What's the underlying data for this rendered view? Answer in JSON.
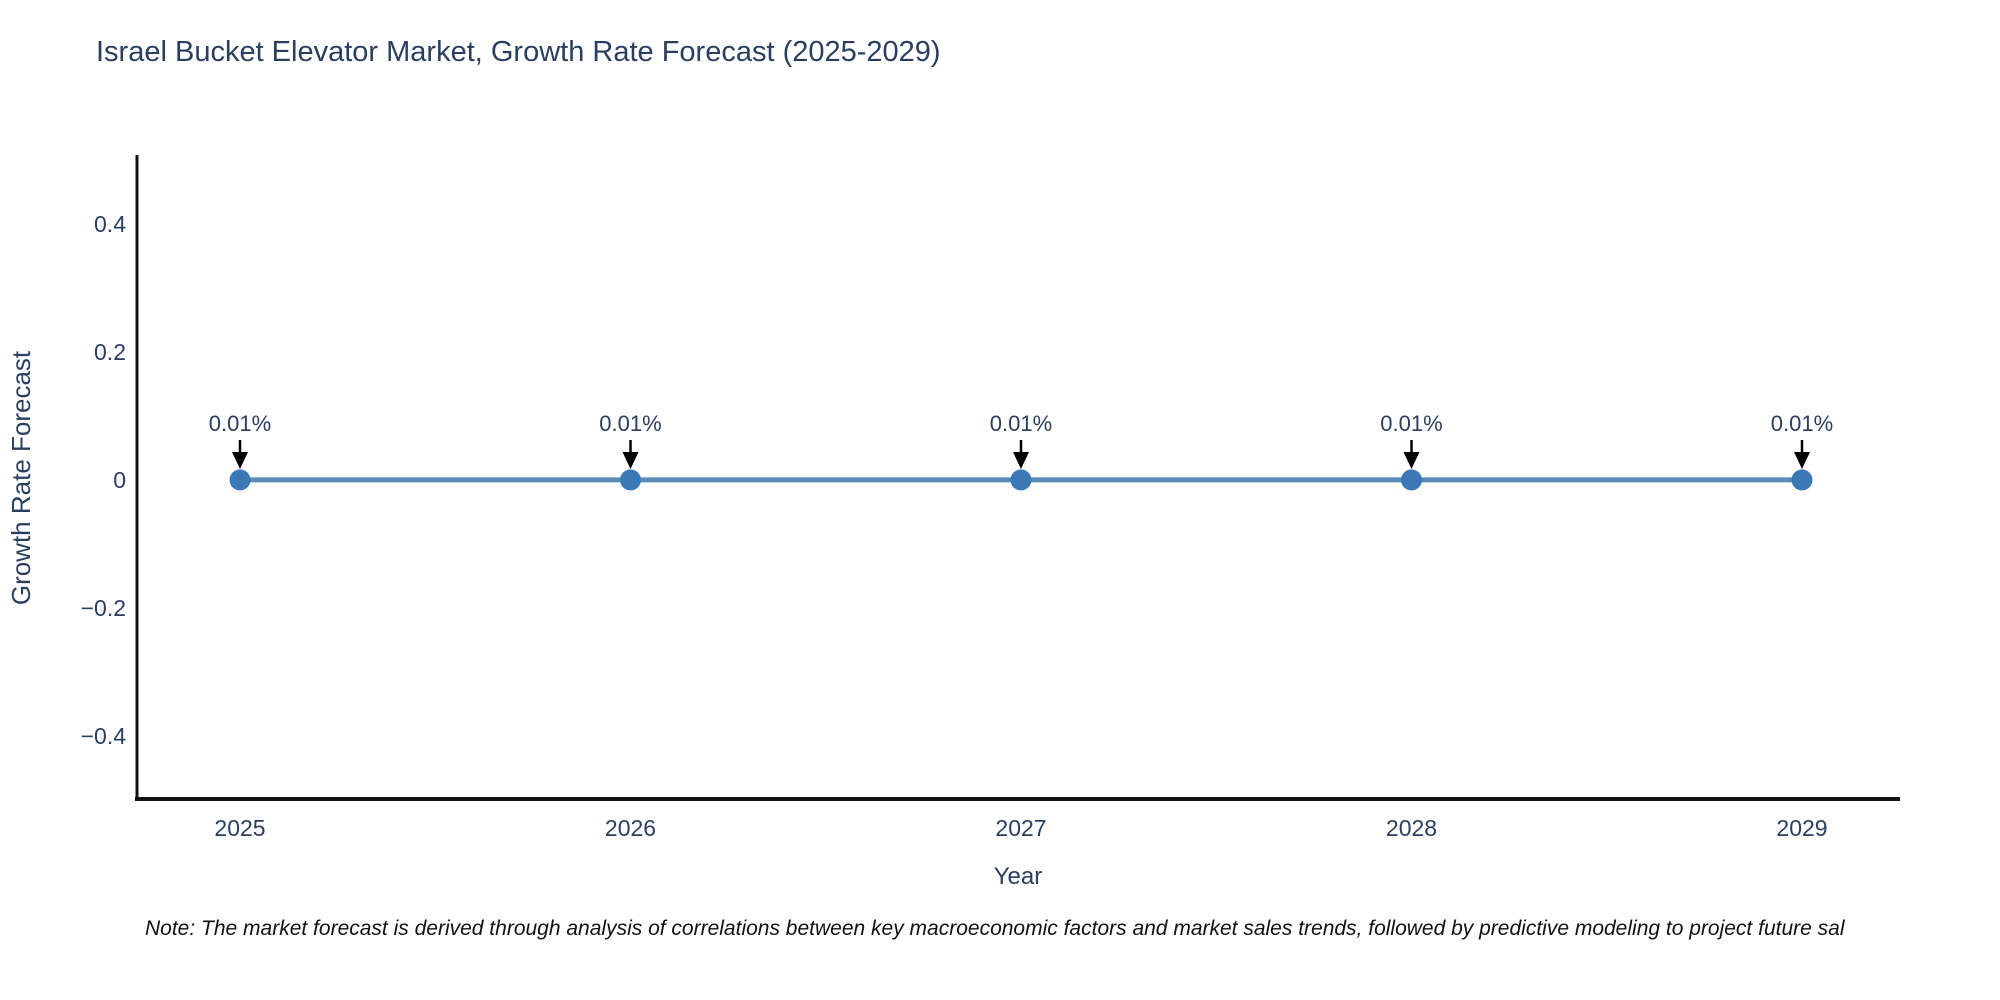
{
  "title": "Israel Bucket Elevator Market, Growth Rate Forecast (2025-2029)",
  "note": "Note: The market forecast is derived through analysis of correlations between key macroeconomic factors and market sales trends, followed by predictive modeling to project future sal",
  "chart_data": {
    "type": "line",
    "title": "Israel Bucket Elevator Market, Growth Rate Forecast (2025-2029)",
    "xlabel": "Year",
    "ylabel": "Growth Rate Forecast",
    "x": [
      "2025",
      "2026",
      "2027",
      "2028",
      "2029"
    ],
    "series": [
      {
        "name": "Growth Rate Forecast",
        "values": [
          0.0001,
          0.0001,
          0.0001,
          0.0001,
          0.0001
        ],
        "labels": [
          "0.01%",
          "0.01%",
          "0.01%",
          "0.01%",
          "0.01%"
        ]
      }
    ],
    "yticks": [
      {
        "value": 0.4,
        "label": "0.4"
      },
      {
        "value": 0.2,
        "label": "0.2"
      },
      {
        "value": 0,
        "label": "0"
      },
      {
        "value": -0.2,
        "label": "−0.2"
      },
      {
        "value": -0.4,
        "label": "−0.4"
      }
    ],
    "ylim": [
      -0.5,
      0.51
    ],
    "grid": false,
    "legend_position": "none",
    "annotation_arrow": "down-arrow",
    "colors": {
      "line": "#5b8cb8",
      "marker": "#3a79b5",
      "arrow": "#000000",
      "axis": "#111111",
      "text": "#2a3f5f",
      "note": "#111111",
      "background": "#ffffff"
    }
  }
}
